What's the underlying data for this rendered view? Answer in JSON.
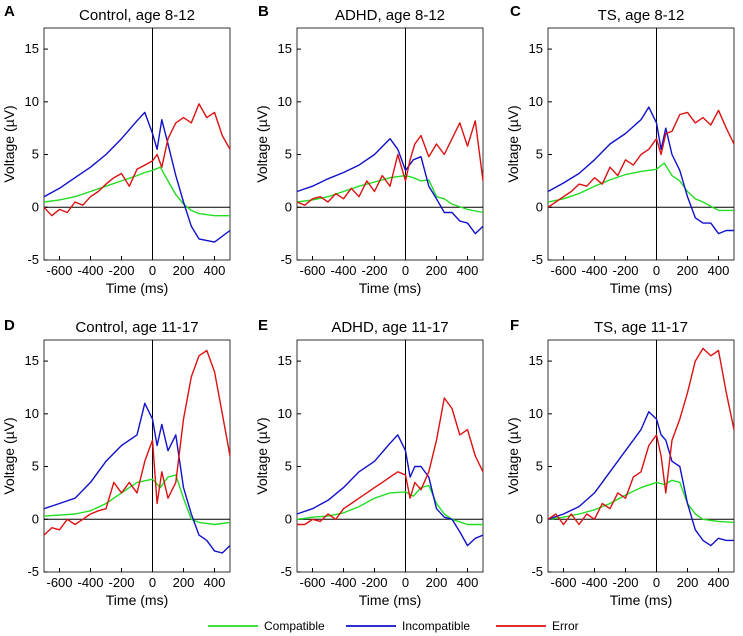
{
  "chart_data": {
    "type": "line",
    "colors": {
      "Compatible": "#22dd22",
      "Incompatible": "#1111cc",
      "Error": "#dd1111"
    },
    "legend": [
      "Compatible",
      "Incompatible",
      "Error"
    ],
    "shared": {
      "xlabel": "Time (ms)",
      "ylabel": "Voltage (µV)",
      "xlim": [
        -700,
        500
      ],
      "ylim": [
        -5,
        17
      ],
      "xticks": [
        -600,
        -400,
        -200,
        0,
        200,
        400
      ],
      "yticks": [
        -5,
        0,
        5,
        10,
        15
      ]
    },
    "panels": [
      {
        "letter": "A",
        "title": "Control, age 8-12",
        "series": [
          {
            "name": "Compatible",
            "x": [
              -700,
              -600,
              -500,
              -400,
              -300,
              -200,
              -100,
              -50,
              0,
              50,
              100,
              150,
              200,
              250,
              300,
              400,
              500
            ],
            "y": [
              0.5,
              0.7,
              1.0,
              1.5,
              2.0,
              2.5,
              3.0,
              3.3,
              3.5,
              3.8,
              2.5,
              1.2,
              0.3,
              -0.3,
              -0.6,
              -0.8,
              -0.8
            ]
          },
          {
            "name": "Incompatible",
            "x": [
              -700,
              -600,
              -500,
              -400,
              -300,
              -200,
              -100,
              -50,
              0,
              30,
              60,
              100,
              150,
              200,
              250,
              300,
              400,
              500
            ],
            "y": [
              1.0,
              1.8,
              2.8,
              3.8,
              5.0,
              6.5,
              8.2,
              9.0,
              7.0,
              5.5,
              8.3,
              6.0,
              3.0,
              0.5,
              -1.8,
              -3.0,
              -3.3,
              -2.2
            ]
          },
          {
            "name": "Error",
            "x": [
              -700,
              -650,
              -600,
              -550,
              -500,
              -450,
              -400,
              -350,
              -300,
              -250,
              -200,
              -150,
              -100,
              -50,
              0,
              30,
              60,
              100,
              150,
              200,
              250,
              300,
              350,
              400,
              450,
              500
            ],
            "y": [
              0.0,
              -0.8,
              -0.2,
              -0.5,
              0.5,
              0.2,
              1.0,
              1.5,
              2.2,
              2.8,
              3.2,
              2.0,
              3.6,
              4.0,
              4.4,
              5.0,
              3.8,
              6.5,
              8.0,
              8.5,
              8.0,
              9.8,
              8.5,
              9.0,
              6.8,
              5.5
            ]
          }
        ]
      },
      {
        "letter": "B",
        "title": "ADHD, age 8-12",
        "series": [
          {
            "name": "Compatible",
            "x": [
              -700,
              -600,
              -500,
              -400,
              -300,
              -200,
              -100,
              0,
              50,
              100,
              150,
              200,
              250,
              300,
              400,
              500
            ],
            "y": [
              0.5,
              0.7,
              1.0,
              1.5,
              2.0,
              2.4,
              2.8,
              3.0,
              2.8,
              2.5,
              2.6,
              1.0,
              0.8,
              0.3,
              -0.2,
              -0.5
            ]
          },
          {
            "name": "Incompatible",
            "x": [
              -700,
              -600,
              -500,
              -400,
              -300,
              -200,
              -100,
              -50,
              0,
              50,
              100,
              150,
              200,
              250,
              300,
              350,
              400,
              450,
              500
            ],
            "y": [
              1.5,
              2.0,
              2.7,
              3.3,
              4.0,
              5.0,
              6.5,
              5.5,
              3.5,
              4.5,
              4.8,
              2.0,
              0.8,
              -0.5,
              -0.5,
              -1.3,
              -1.5,
              -2.5,
              -1.8
            ]
          },
          {
            "name": "Error",
            "x": [
              -700,
              -650,
              -600,
              -550,
              -500,
              -450,
              -400,
              -350,
              -300,
              -250,
              -200,
              -150,
              -100,
              -50,
              0,
              30,
              60,
              100,
              150,
              200,
              250,
              300,
              350,
              400,
              450,
              500
            ],
            "y": [
              0.5,
              0.2,
              0.8,
              1.0,
              0.5,
              1.3,
              0.8,
              1.8,
              1.0,
              2.5,
              1.5,
              3.0,
              2.0,
              5.0,
              2.5,
              4.5,
              6.0,
              6.8,
              4.8,
              6.0,
              5.0,
              6.5,
              8.0,
              5.8,
              8.2,
              2.5
            ]
          }
        ]
      },
      {
        "letter": "C",
        "title": "TS, age 8-12",
        "series": [
          {
            "name": "Compatible",
            "x": [
              -700,
              -600,
              -500,
              -400,
              -300,
              -200,
              -100,
              0,
              50,
              100,
              150,
              200,
              250,
              300,
              400,
              500
            ],
            "y": [
              0.5,
              0.8,
              1.3,
              2.0,
              2.6,
              3.1,
              3.4,
              3.6,
              4.2,
              3.0,
              2.5,
              1.5,
              0.8,
              0.5,
              -0.3,
              -0.3
            ]
          },
          {
            "name": "Incompatible",
            "x": [
              -700,
              -600,
              -500,
              -400,
              -300,
              -200,
              -100,
              -50,
              0,
              30,
              60,
              100,
              150,
              200,
              250,
              300,
              350,
              400,
              450,
              500
            ],
            "y": [
              1.5,
              2.3,
              3.2,
              4.5,
              6.0,
              7.0,
              8.3,
              9.5,
              8.0,
              5.5,
              7.5,
              5.0,
              3.5,
              1.0,
              -1.0,
              -1.5,
              -1.5,
              -2.5,
              -2.2,
              -2.2
            ]
          },
          {
            "name": "Error",
            "x": [
              -700,
              -650,
              -600,
              -550,
              -500,
              -450,
              -400,
              -350,
              -300,
              -250,
              -200,
              -150,
              -100,
              -50,
              0,
              30,
              60,
              100,
              150,
              200,
              250,
              300,
              350,
              400,
              450,
              500
            ],
            "y": [
              0.0,
              0.5,
              1.0,
              1.5,
              2.2,
              2.0,
              2.8,
              2.2,
              3.8,
              3.0,
              4.5,
              4.0,
              5.0,
              5.5,
              6.5,
              5.0,
              7.0,
              7.2,
              8.8,
              9.0,
              8.0,
              8.5,
              7.8,
              9.2,
              7.5,
              6.0
            ]
          }
        ]
      },
      {
        "letter": "D",
        "title": "Control, age 11-17",
        "series": [
          {
            "name": "Compatible",
            "x": [
              -700,
              -600,
              -500,
              -400,
              -300,
              -200,
              -100,
              0,
              50,
              100,
              150,
              200,
              250,
              300,
              400,
              500
            ],
            "y": [
              0.3,
              0.4,
              0.5,
              0.8,
              1.5,
              2.5,
              3.5,
              3.8,
              3.0,
              4.0,
              4.2,
              2.0,
              0.0,
              -0.3,
              -0.5,
              -0.3
            ]
          },
          {
            "name": "Incompatible",
            "x": [
              -700,
              -600,
              -500,
              -400,
              -300,
              -200,
              -100,
              -50,
              0,
              30,
              60,
              100,
              150,
              200,
              250,
              300,
              350,
              400,
              450,
              500
            ],
            "y": [
              1.0,
              1.5,
              2.0,
              3.5,
              5.5,
              7.0,
              8.0,
              11.0,
              9.5,
              7.0,
              9.0,
              6.5,
              8.0,
              3.0,
              0.5,
              -1.5,
              -2.0,
              -3.0,
              -3.2,
              -2.5
            ]
          },
          {
            "name": "Error",
            "x": [
              -700,
              -650,
              -600,
              -550,
              -500,
              -450,
              -400,
              -350,
              -300,
              -250,
              -200,
              -150,
              -100,
              -50,
              0,
              30,
              60,
              100,
              150,
              200,
              250,
              300,
              350,
              400,
              450,
              500
            ],
            "y": [
              -1.5,
              -0.8,
              -1.0,
              0.0,
              -0.5,
              0.0,
              0.5,
              0.8,
              1.0,
              3.5,
              2.5,
              3.5,
              2.5,
              5.5,
              7.5,
              1.5,
              4.5,
              2.0,
              3.5,
              9.5,
              13.5,
              15.5,
              16.0,
              14.0,
              10.0,
              6.0
            ]
          }
        ]
      },
      {
        "letter": "E",
        "title": "ADHD, age  11-17",
        "series": [
          {
            "name": "Compatible",
            "x": [
              -700,
              -600,
              -500,
              -400,
              -300,
              -200,
              -100,
              0,
              50,
              100,
              150,
              200,
              250,
              300,
              400,
              500
            ],
            "y": [
              0.0,
              0.2,
              0.3,
              0.6,
              1.2,
              2.0,
              2.5,
              2.6,
              2.2,
              3.0,
              3.2,
              1.5,
              0.5,
              0.0,
              -0.5,
              -0.5
            ]
          },
          {
            "name": "Incompatible",
            "x": [
              -700,
              -600,
              -500,
              -400,
              -300,
              -200,
              -100,
              -50,
              0,
              30,
              60,
              100,
              150,
              200,
              250,
              300,
              350,
              400,
              450,
              500
            ],
            "y": [
              0.5,
              1.0,
              1.8,
              3.0,
              4.5,
              5.5,
              7.2,
              8.0,
              6.5,
              4.0,
              5.0,
              5.0,
              4.0,
              1.0,
              0.2,
              0.0,
              -1.2,
              -2.5,
              -1.8,
              -1.5
            ]
          },
          {
            "name": "Error",
            "x": [
              -700,
              -650,
              -600,
              -550,
              -500,
              -450,
              -400,
              -350,
              -300,
              -250,
              -200,
              -150,
              -100,
              -50,
              0,
              30,
              60,
              100,
              150,
              200,
              250,
              300,
              350,
              400,
              450,
              500
            ],
            "y": [
              -0.5,
              -0.5,
              0.0,
              -0.2,
              0.5,
              0.0,
              1.0,
              1.5,
              2.0,
              2.5,
              3.0,
              3.5,
              4.0,
              4.5,
              4.2,
              2.0,
              3.5,
              2.8,
              4.5,
              7.5,
              11.5,
              10.5,
              8.0,
              8.5,
              6.0,
              4.5
            ]
          }
        ]
      },
      {
        "letter": "F",
        "title": "TS, age 11-17",
        "series": [
          {
            "name": "Compatible",
            "x": [
              -700,
              -600,
              -500,
              -400,
              -300,
              -200,
              -100,
              0,
              50,
              100,
              150,
              200,
              250,
              300,
              400,
              500
            ],
            "y": [
              0.0,
              0.2,
              0.5,
              0.9,
              1.5,
              2.3,
              3.0,
              3.5,
              3.3,
              3.7,
              3.5,
              1.5,
              0.5,
              0.0,
              -0.2,
              -0.3
            ]
          },
          {
            "name": "Incompatible",
            "x": [
              -700,
              -600,
              -500,
              -400,
              -300,
              -200,
              -100,
              -50,
              0,
              30,
              60,
              100,
              150,
              200,
              250,
              300,
              350,
              400,
              450,
              500
            ],
            "y": [
              0.0,
              0.5,
              1.2,
              2.5,
              4.5,
              6.5,
              8.5,
              10.2,
              9.5,
              8.0,
              7.5,
              5.5,
              5.0,
              1.5,
              -1.0,
              -2.0,
              -2.5,
              -1.8,
              -2.0,
              -2.0
            ]
          },
          {
            "name": "Error",
            "x": [
              -700,
              -650,
              -600,
              -550,
              -500,
              -450,
              -400,
              -350,
              -300,
              -250,
              -200,
              -150,
              -100,
              -50,
              0,
              30,
              60,
              100,
              150,
              200,
              250,
              300,
              350,
              400,
              450,
              500
            ],
            "y": [
              0.0,
              0.5,
              -0.5,
              0.5,
              -0.5,
              0.5,
              0.0,
              1.5,
              1.0,
              2.5,
              2.0,
              4.0,
              4.5,
              7.0,
              8.0,
              6.0,
              2.5,
              7.5,
              9.5,
              12.0,
              15.0,
              16.2,
              15.5,
              16.0,
              12.0,
              8.5
            ]
          }
        ]
      }
    ]
  }
}
